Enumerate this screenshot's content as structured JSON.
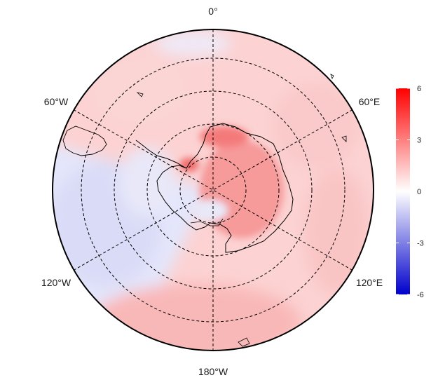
{
  "map": {
    "projection": "south-polar-stereographic",
    "longitude_labels": {
      "top": "0°",
      "upper_left": "60°W",
      "upper_right": "60°E",
      "lower_left": "120°W",
      "lower_right": "120°E",
      "bottom": "180°W"
    },
    "graticule": {
      "latitude_circles": 5,
      "meridians_every_deg": 60,
      "style": "dashed"
    },
    "colors": {
      "coast": "#000000",
      "grid": "#000000",
      "warm": "#ff0000",
      "cool": "#0000cc",
      "neutral": "#ffffff"
    }
  },
  "colorbar": {
    "range": [
      -6,
      6
    ],
    "ticks": [
      "6",
      "3",
      "0",
      "-3",
      "-6"
    ]
  }
}
